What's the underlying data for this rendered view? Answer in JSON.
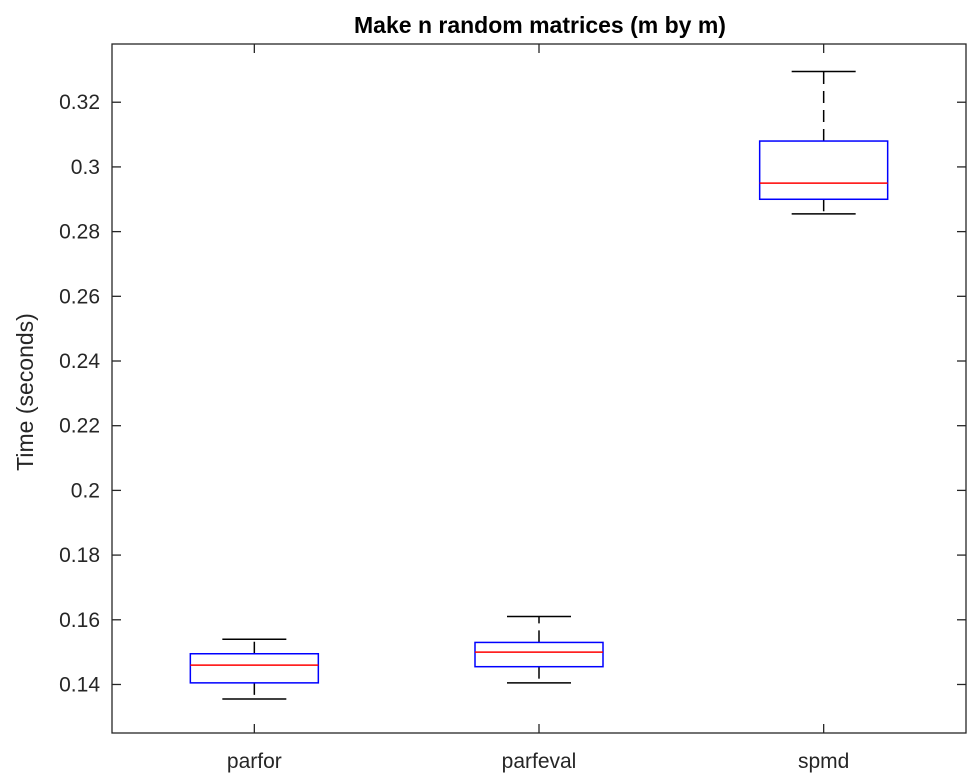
{
  "chart_data": {
    "type": "boxplot",
    "title": "Make n random matrices (m by m)",
    "xlabel": "",
    "ylabel": "Time (seconds)",
    "categories": [
      "parfor",
      "parfeval",
      "spmd"
    ],
    "yticks": [
      "0.14",
      "0.16",
      "0.18",
      "0.2",
      "0.22",
      "0.24",
      "0.26",
      "0.28",
      "0.3",
      "0.32"
    ],
    "ylim": [
      0.125,
      0.338
    ],
    "grid": false,
    "boxes": [
      {
        "label": "parfor",
        "whisker_low": 0.1355,
        "q1": 0.1405,
        "median": 0.146,
        "q3": 0.1495,
        "whisker_high": 0.154
      },
      {
        "label": "parfeval",
        "whisker_low": 0.1405,
        "q1": 0.1455,
        "median": 0.15,
        "q3": 0.153,
        "whisker_high": 0.161
      },
      {
        "label": "spmd",
        "whisker_low": 0.2855,
        "q1": 0.29,
        "median": 0.295,
        "q3": 0.308,
        "whisker_high": 0.3295
      }
    ],
    "colors": {
      "box": "#0000ff",
      "median": "#ff0000",
      "whisker": "#000000",
      "axis": "#262626"
    }
  }
}
